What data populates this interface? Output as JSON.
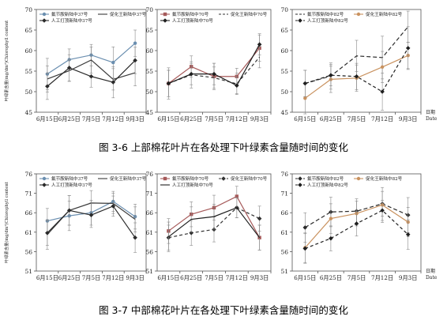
{
  "figure": {
    "captions": [
      "图 3-6  上部棉花叶片在各处理下叶绿素含量随时间的变化",
      "图 3-7  中部棉花叶片在各处理下叶绿素含量随时间的变化"
    ]
  },
  "chart_data": [
    {
      "type": "line",
      "categories": [
        "6月15日",
        "6月25日",
        "7月5日",
        "7月12日",
        "9月3日"
      ],
      "ylim": [
        45,
        70
      ],
      "yticks": [
        45,
        50,
        55,
        60,
        65,
        70
      ],
      "ylabel": "叶绿素含量(mg/dm²)Chlorophyll content",
      "xlabel": "",
      "legend_position": "top",
      "series": [
        {
          "name": "氟节胺新陆中37号",
          "values": [
            54.3,
            57.8,
            58.9,
            57.1,
            61.8
          ],
          "errors": [
            3.8,
            2.6,
            2.6,
            3.8,
            3.2
          ],
          "color": "#6b8fb0",
          "dash": "",
          "marker": "circle"
        },
        {
          "name": "促化王新陆中37号",
          "values": [
            53.1,
            55.1,
            57.7,
            53.0,
            54.6
          ],
          "errors": [
            3.2,
            2.6,
            3.2,
            2.6,
            3.2
          ],
          "color": "#3a3a3a",
          "dash": "",
          "marker": "none"
        },
        {
          "name": "人工打顶新陆中37号",
          "values": [
            51.3,
            55.8,
            53.7,
            52.3,
            57.6
          ],
          "errors": [
            3.2,
            3.2,
            2.6,
            3.8,
            3.2
          ],
          "color": "#2a2a2a",
          "dash": "",
          "marker": "diamond"
        }
      ]
    },
    {
      "type": "line",
      "categories": [
        "6月15日",
        "6月25日",
        "7月5日",
        "7月12日",
        "9月3日"
      ],
      "ylim": [
        45,
        70
      ],
      "yticks": [
        45,
        50,
        55,
        60,
        65,
        70
      ],
      "xlabel": "",
      "ylabel": "",
      "legend_position": "top",
      "series": [
        {
          "name": "氟节胺新陆中70号",
          "values": [
            52.0,
            56.1,
            53.7,
            53.7,
            60.6
          ],
          "errors": [
            3.8,
            2.6,
            3.2,
            2.0,
            3.2
          ],
          "color": "#a65a5a",
          "dash": "",
          "marker": "square"
        },
        {
          "name": "促化王新陆中70号",
          "values": [
            52.0,
            54.1,
            53.4,
            51.9,
            58.4
          ],
          "errors": [
            3.2,
            3.2,
            2.6,
            2.6,
            2.6
          ],
          "color": "#333333",
          "dash": "4,3",
          "marker": "none"
        },
        {
          "name": "人工打顶新陆中70号",
          "values": [
            52.0,
            54.3,
            54.3,
            51.5,
            61.5
          ],
          "errors": [
            3.2,
            2.6,
            2.6,
            2.0,
            2.6
          ],
          "color": "#1f1f1f",
          "dash": "",
          "marker": "diamond"
        }
      ]
    },
    {
      "type": "line",
      "categories": [
        "6月15日",
        "6月25日",
        "7月5日",
        "7月12日",
        "9月3日"
      ],
      "ylim": [
        45,
        70
      ],
      "yticks": [
        45,
        50,
        55,
        60,
        65,
        70
      ],
      "xlabel": "日期 Date",
      "ylabel": "",
      "legend_position": "top",
      "series": [
        {
          "name": "氟节胺新陆中82号",
          "values": [
            52.0,
            53.8,
            58.7,
            58.3,
            65.8
          ],
          "errors": [
            3.2,
            3.2,
            3.8,
            5.2,
            3.8
          ],
          "color": "#2a2a2a",
          "dash": "5,3",
          "marker": "none"
        },
        {
          "name": "促化王新陆中82号",
          "values": [
            48.4,
            53.0,
            53.3,
            56.0,
            58.8
          ],
          "errors": [
            3.8,
            3.2,
            3.2,
            3.8,
            3.2
          ],
          "color": "#c9925f",
          "dash": "",
          "marker": "circle"
        },
        {
          "name": "人工打顶新陆中82号",
          "values": [
            52.0,
            54.0,
            53.7,
            50.0,
            60.6
          ],
          "errors": [
            3.2,
            2.6,
            3.2,
            4.5,
            5.2
          ],
          "color": "#1f1f1f",
          "dash": "4,3",
          "marker": "diamond"
        }
      ]
    },
    {
      "type": "line",
      "categories": [
        "6月15日",
        "6月25日",
        "7月5日",
        "7月12日",
        "9月3日"
      ],
      "ylim": [
        51,
        76
      ],
      "yticks": [
        51,
        56,
        61,
        66,
        71,
        76
      ],
      "ylabel": "叶绿素含量(mg/dm²)Chlorophyll content",
      "xlabel": "",
      "legend_position": "top",
      "series": [
        {
          "name": "氟节胺新陆中37号",
          "values": [
            63.9,
            65.2,
            66.0,
            68.9,
            65.0
          ],
          "errors": [
            3.2,
            3.8,
            3.2,
            2.6,
            3.2
          ],
          "color": "#6b8fb0",
          "dash": "",
          "marker": "circle"
        },
        {
          "name": "促化王新陆中37号",
          "values": [
            60.4,
            66.6,
            68.5,
            68.4,
            64.3
          ],
          "errors": [
            3.8,
            3.8,
            3.2,
            2.6,
            3.2
          ],
          "color": "#3a3a3a",
          "dash": "",
          "marker": "none"
        },
        {
          "name": "人工打顶新陆中37号",
          "values": [
            60.8,
            66.6,
            65.4,
            67.7,
            59.6
          ],
          "errors": [
            3.2,
            3.8,
            3.2,
            2.6,
            3.8
          ],
          "color": "#2a2a2a",
          "dash": "",
          "marker": "diamond"
        }
      ]
    },
    {
      "type": "line",
      "categories": [
        "6月15日",
        "6月25日",
        "7月5日",
        "7月12日",
        "9月3日"
      ],
      "ylim": [
        51,
        76
      ],
      "yticks": [
        51,
        56,
        61,
        66,
        71,
        76
      ],
      "xlabel": "",
      "ylabel": "",
      "legend_position": "top",
      "series": [
        {
          "name": "氟节胺新陆中70号",
          "values": [
            61.3,
            65.6,
            67.3,
            70.2,
            59.6
          ],
          "errors": [
            3.2,
            3.2,
            3.2,
            2.6,
            3.2
          ],
          "color": "#a65a5a",
          "dash": "",
          "marker": "square"
        },
        {
          "name": "促化王新陆中70号",
          "values": [
            59.6,
            60.8,
            61.7,
            67.3,
            64.5
          ],
          "errors": [
            3.2,
            3.2,
            3.2,
            2.6,
            3.2
          ],
          "color": "#333333",
          "dash": "4,3",
          "marker": "diamond"
        },
        {
          "name": "人工打顶新陆中70号",
          "values": [
            59.8,
            64.3,
            65.0,
            67.3,
            59.6
          ],
          "errors": [
            3.8,
            3.2,
            3.2,
            2.6,
            3.2
          ],
          "color": "#1f1f1f",
          "dash": "",
          "marker": "none"
        }
      ]
    },
    {
      "type": "line",
      "categories": [
        "6月15日",
        "6月25日",
        "7月5日",
        "7月12日",
        "9月3日"
      ],
      "ylim": [
        51,
        76
      ],
      "yticks": [
        51,
        56,
        61,
        66,
        71,
        76
      ],
      "xlabel": "日期 Date",
      "ylabel": "",
      "legend_position": "top",
      "series": [
        {
          "name": "氟节胺新陆中82号",
          "values": [
            62.2,
            66.2,
            66.4,
            68.3,
            65.4
          ],
          "errors": [
            3.8,
            3.8,
            3.2,
            3.2,
            4.5
          ],
          "color": "#2a2a2a",
          "dash": "5,3",
          "marker": "diamond"
        },
        {
          "name": "促化王新陆中82号",
          "values": [
            57.0,
            64.5,
            65.8,
            68.0,
            63.6
          ],
          "errors": [
            3.8,
            3.8,
            3.2,
            4.5,
            3.8
          ],
          "color": "#c9925f",
          "dash": "",
          "marker": "circle"
        },
        {
          "name": "人工打顶新陆中82号",
          "values": [
            56.8,
            59.4,
            63.2,
            66.6,
            60.4
          ],
          "errors": [
            3.8,
            3.2,
            3.2,
            2.6,
            3.8
          ],
          "color": "#1f1f1f",
          "dash": "4,3",
          "marker": "diamond"
        }
      ]
    }
  ]
}
